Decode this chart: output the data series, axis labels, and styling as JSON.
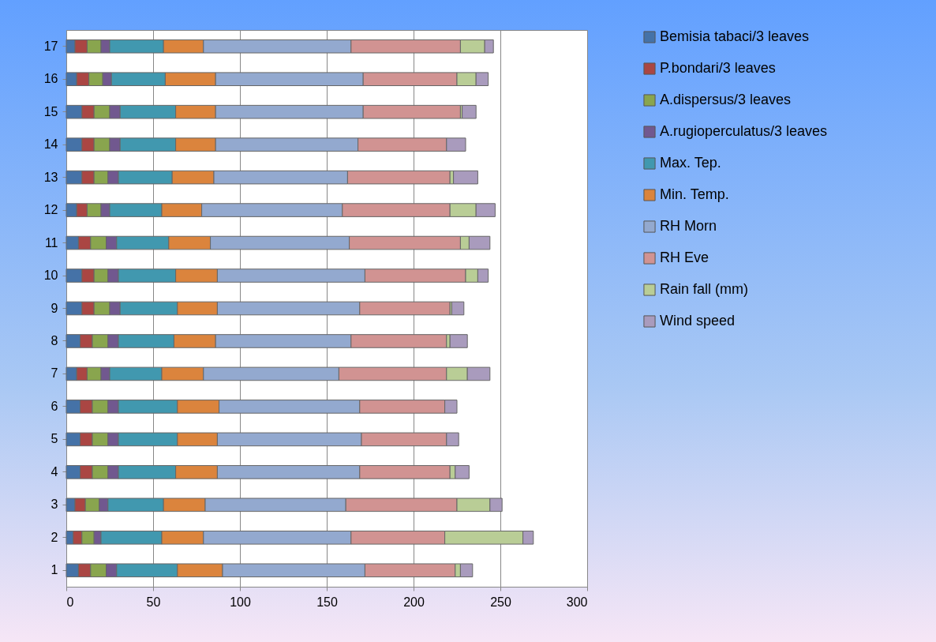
{
  "chart_data": {
    "type": "bar",
    "orientation": "horizontal",
    "stacked": true,
    "categories": [
      "17",
      "16",
      "15",
      "14",
      "13",
      "12",
      "11",
      "10",
      "9",
      "8",
      "7",
      "6",
      "5",
      "4",
      "3",
      "2",
      "1"
    ],
    "series": [
      {
        "name": "Bemisia tabaci/3 leaves",
        "color": "#4572a7",
        "values": [
          5,
          6,
          9,
          9,
          9,
          6,
          7,
          9,
          9,
          8,
          6,
          8,
          8,
          8,
          5,
          4,
          7
        ]
      },
      {
        "name": "P.bondari/3 leaves",
        "color": "#aa4643",
        "values": [
          7,
          7,
          7,
          7,
          7,
          6,
          7,
          7,
          7,
          7,
          6,
          7,
          7,
          7,
          6,
          5,
          7
        ]
      },
      {
        "name": "A.dispersus/3 leaves",
        "color": "#89a54e",
        "values": [
          8,
          8,
          9,
          9,
          8,
          8,
          9,
          8,
          9,
          9,
          8,
          9,
          9,
          9,
          8,
          7,
          9
        ]
      },
      {
        "name": "A.rugioperculatus/3 leaves",
        "color": "#71588f",
        "values": [
          5,
          5,
          6,
          6,
          6,
          5,
          6,
          6,
          6,
          6,
          5,
          6,
          6,
          6,
          5,
          4,
          6
        ]
      },
      {
        "name": "Max. Tep.",
        "color": "#4198af",
        "values": [
          31,
          31,
          32,
          32,
          31,
          30,
          30,
          33,
          33,
          32,
          30,
          34,
          34,
          33,
          32,
          35,
          35
        ]
      },
      {
        "name": "Min. Temp.",
        "color": "#db843d",
        "values": [
          23,
          29,
          23,
          23,
          24,
          23,
          24,
          24,
          23,
          24,
          24,
          24,
          23,
          24,
          24,
          24,
          26
        ]
      },
      {
        "name": "RH Morn",
        "color": "#93a9cf",
        "values": [
          85,
          85,
          85,
          82,
          77,
          81,
          80,
          85,
          82,
          78,
          78,
          81,
          83,
          82,
          81,
          85,
          82
        ]
      },
      {
        "name": "RH Eve",
        "color": "#d19392",
        "values": [
          63,
          54,
          56,
          51,
          59,
          62,
          64,
          58,
          52,
          55,
          62,
          49,
          49,
          52,
          64,
          54,
          52
        ]
      },
      {
        "name": "Rain fall (mm)",
        "color": "#b9cd96",
        "values": [
          14,
          11,
          1,
          0,
          2,
          15,
          5,
          7,
          1,
          2,
          12,
          0,
          0,
          3,
          19,
          45,
          3
        ]
      },
      {
        "name": "Wind speed",
        "color": "#a99bbd",
        "values": [
          5,
          7,
          8,
          11,
          14,
          11,
          12,
          6,
          7,
          10,
          13,
          7,
          7,
          8,
          7,
          6,
          7
        ]
      }
    ],
    "xlim": [
      0,
      300
    ],
    "xticks": [
      0,
      50,
      100,
      150,
      200,
      250,
      300
    ],
    "grid": "x",
    "legend": "right"
  }
}
